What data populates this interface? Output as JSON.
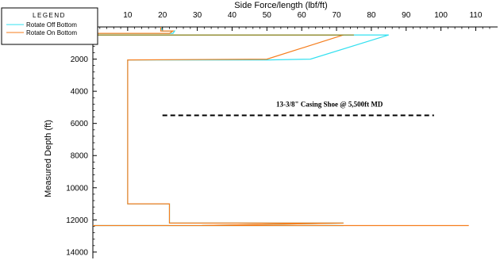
{
  "chart_data": {
    "type": "line",
    "title": "",
    "xlabel": "Side Force/length (lbf/ft)",
    "ylabel": "Measured Depth (ft)",
    "xlim": [
      0,
      115
    ],
    "ylim": [
      0,
      14500
    ],
    "y_inverted": true,
    "x_axis_position": "top",
    "x_ticks": [
      10,
      20,
      30,
      40,
      50,
      60,
      70,
      80,
      90,
      100,
      110
    ],
    "y_ticks": [
      2000,
      4000,
      6000,
      8000,
      10000,
      12000,
      14000
    ],
    "grid": false,
    "legend": {
      "title": "LEGEND",
      "placement": "top-left"
    },
    "series": [
      {
        "name": "Rotate Off Bottom",
        "color": "#33e0f0",
        "points": [
          [
            19.5,
            0
          ],
          [
            20,
            250
          ],
          [
            23.5,
            250
          ],
          [
            23,
            400
          ],
          [
            0,
            400
          ],
          [
            0,
            500
          ],
          [
            85,
            500
          ],
          [
            62.5,
            2000
          ],
          [
            50,
            2050
          ],
          [
            10,
            2050
          ],
          [
            10,
            11000
          ],
          [
            22,
            11000
          ],
          [
            22,
            12200
          ],
          [
            72,
            12200
          ],
          [
            30,
            12350
          ],
          [
            72,
            12350
          ],
          [
            0,
            12350
          ]
        ]
      },
      {
        "name": "Rotate On Bottom",
        "color": "#f57e1e",
        "points": [
          [
            19.5,
            0
          ],
          [
            19.5,
            250
          ],
          [
            23,
            250
          ],
          [
            22,
            400
          ],
          [
            0,
            400
          ],
          [
            0,
            500
          ],
          [
            72,
            500
          ],
          [
            50,
            2000
          ],
          [
            10,
            2050
          ],
          [
            10,
            11000
          ],
          [
            22,
            11000
          ],
          [
            22,
            12200
          ],
          [
            72,
            12200
          ],
          [
            30,
            12350
          ],
          [
            108,
            12350
          ],
          [
            0,
            12350
          ]
        ]
      },
      {
        "name": "",
        "color": "#8b8a2a",
        "points": [
          [
            0,
            500
          ],
          [
            75,
            500
          ]
        ]
      }
    ],
    "annotations": [
      {
        "text": "13-3/8\" Casing Shoe @ 5,500ft MD",
        "line_depth": 5500,
        "line_x": [
          20,
          98
        ]
      }
    ]
  }
}
